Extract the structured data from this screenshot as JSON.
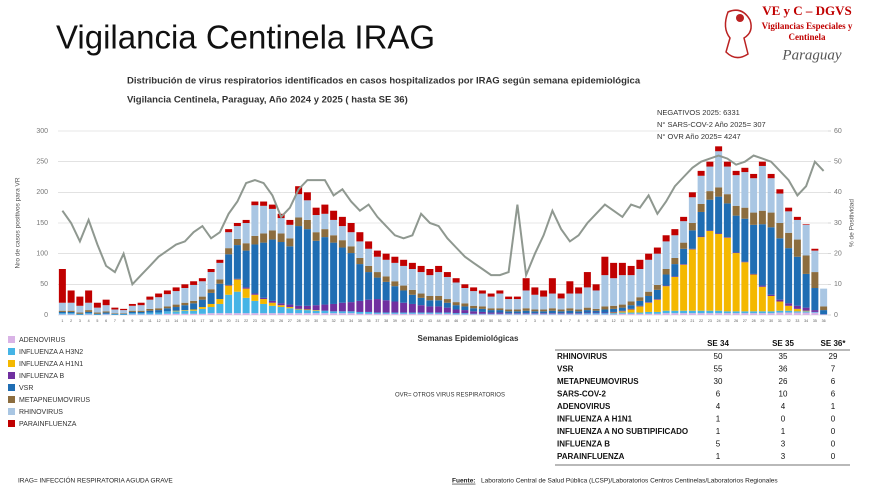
{
  "header": {
    "title": "Vigilancia Centinela IRAG",
    "logo_title": "VE y C – DGVS",
    "logo_line1": "Vigilancias Especiales y",
    "logo_line2": "Centinela",
    "logo_country": "Paraguay"
  },
  "chart_data": {
    "type": "bar",
    "stacked": true,
    "title": "Distribución de virus respiratorios identificados en casos hospitalizados por IRAG según semana epidemiológica",
    "subtitle": "Vigilancia Centinela, Paraguay, Año 2024 y 2025 ( hasta SE 36)",
    "x_label": "Semanas Epidemiológicas",
    "y_label": "Nro de casos positivos para VR",
    "y2_label": "% de Positividad",
    "annotations": [
      "NEGATIVOS 2025: 6331",
      "N° SARS-COV-2 Año 2025= 307",
      "N° OVR Año 2025= 4247"
    ],
    "note": "OVR= OTROS VIRUS RESPIRATORIOS",
    "categories": [
      "1",
      "2",
      "3",
      "4",
      "5",
      "6",
      "7",
      "8",
      "9",
      "10",
      "11",
      "12",
      "13",
      "14",
      "15",
      "16",
      "17",
      "18",
      "19",
      "20",
      "21",
      "22",
      "23",
      "24",
      "25",
      "26",
      "27",
      "28",
      "29",
      "30",
      "31",
      "32",
      "33",
      "34",
      "35",
      "36",
      "37",
      "38",
      "39",
      "40",
      "41",
      "42",
      "43",
      "44",
      "45",
      "46",
      "47",
      "48",
      "49",
      "50",
      "51",
      "52",
      "1",
      "2",
      "3",
      "4",
      "5",
      "6",
      "7",
      "8",
      "9",
      "10",
      "11",
      "12",
      "13",
      "14",
      "15",
      "16",
      "17",
      "18",
      "19",
      "20",
      "21",
      "22",
      "23",
      "24",
      "25",
      "26",
      "27",
      "28",
      "29",
      "30",
      "31",
      "32",
      "33",
      "34",
      "35",
      "36"
    ],
    "ylim": [
      0,
      300
    ],
    "yticks": [
      0,
      50,
      100,
      150,
      200,
      250,
      300
    ],
    "y2lim": [
      0,
      60
    ],
    "y2ticks": [
      0,
      10,
      20,
      30,
      40,
      50,
      60
    ],
    "grid": true,
    "series": [
      {
        "name": "ADENOVIRUS",
        "color": "#d9b3e6",
        "values": [
          1,
          1,
          0,
          1,
          0,
          1,
          0,
          0,
          1,
          1,
          1,
          1,
          2,
          2,
          2,
          2,
          2,
          3,
          3,
          3,
          3,
          3,
          3,
          3,
          3,
          3,
          3,
          3,
          3,
          3,
          3,
          3,
          3,
          3,
          2,
          2,
          2,
          2,
          2,
          2,
          2,
          2,
          2,
          2,
          2,
          1,
          1,
          1,
          1,
          1,
          1,
          1,
          1,
          1,
          1,
          1,
          1,
          1,
          1,
          1,
          1,
          1,
          1,
          1,
          2,
          2,
          2,
          2,
          2,
          3,
          3,
          3,
          3,
          3,
          3,
          3,
          3,
          3,
          3,
          3,
          3,
          3,
          4,
          4,
          4,
          4,
          4,
          1
        ]
      },
      {
        "name": "INFLUENZA A H3N2",
        "color": "#45b4e6",
        "values": [
          2,
          2,
          1,
          2,
          1,
          1,
          1,
          1,
          2,
          2,
          3,
          3,
          4,
          4,
          5,
          5,
          8,
          10,
          15,
          30,
          35,
          25,
          20,
          15,
          12,
          10,
          8,
          6,
          5,
          4,
          4,
          3,
          3,
          3,
          3,
          3,
          2,
          2,
          2,
          2,
          2,
          2,
          2,
          2,
          2,
          2,
          2,
          1,
          1,
          1,
          1,
          1,
          1,
          1,
          1,
          1,
          1,
          1,
          1,
          1,
          2,
          2,
          2,
          2,
          2,
          2,
          2,
          3,
          3,
          4,
          4,
          4,
          4,
          4,
          4,
          4,
          3,
          3,
          3,
          3,
          3,
          3,
          3,
          3,
          2,
          2,
          1,
          0
        ]
      },
      {
        "name": "INFLUENZA A H1N1",
        "color": "#f4b800",
        "values": [
          0,
          0,
          0,
          0,
          0,
          0,
          0,
          0,
          0,
          0,
          0,
          0,
          0,
          1,
          1,
          2,
          3,
          5,
          8,
          15,
          20,
          15,
          10,
          8,
          5,
          3,
          2,
          1,
          1,
          1,
          0,
          0,
          0,
          0,
          0,
          0,
          0,
          0,
          0,
          0,
          0,
          0,
          0,
          0,
          0,
          0,
          0,
          0,
          0,
          0,
          0,
          0,
          0,
          0,
          0,
          0,
          0,
          0,
          0,
          0,
          0,
          0,
          0,
          1,
          2,
          5,
          10,
          15,
          20,
          40,
          55,
          75,
          100,
          120,
          130,
          125,
          120,
          95,
          80,
          60,
          40,
          25,
          15,
          8,
          4,
          1,
          0,
          0
        ]
      },
      {
        "name": "INFLUENZA B",
        "color": "#7030a0",
        "values": [
          0,
          0,
          0,
          0,
          0,
          0,
          0,
          0,
          0,
          0,
          0,
          0,
          0,
          0,
          0,
          0,
          0,
          0,
          0,
          1,
          1,
          2,
          2,
          2,
          3,
          3,
          4,
          5,
          6,
          8,
          10,
          12,
          14,
          15,
          18,
          20,
          22,
          20,
          18,
          16,
          14,
          12,
          10,
          10,
          8,
          6,
          5,
          4,
          3,
          2,
          2,
          1,
          1,
          1,
          1,
          1,
          1,
          1,
          1,
          1,
          1,
          1,
          1,
          1,
          1,
          1,
          1,
          1,
          1,
          1,
          1,
          1,
          1,
          1,
          1,
          1,
          1,
          1,
          1,
          1,
          2,
          2,
          3,
          4,
          5,
          5,
          3,
          0
        ]
      },
      {
        "name": "VSR",
        "color": "#1f6db3",
        "values": [
          2,
          2,
          1,
          2,
          1,
          2,
          1,
          1,
          2,
          2,
          3,
          4,
          5,
          6,
          8,
          10,
          12,
          18,
          25,
          50,
          55,
          60,
          80,
          90,
          100,
          100,
          95,
          130,
          125,
          105,
          110,
          100,
          90,
          80,
          60,
          45,
          35,
          30,
          25,
          20,
          15,
          12,
          10,
          10,
          8,
          7,
          6,
          5,
          5,
          4,
          4,
          3,
          3,
          4,
          3,
          3,
          4,
          3,
          4,
          3,
          4,
          3,
          5,
          5,
          5,
          6,
          8,
          10,
          15,
          18,
          20,
          25,
          30,
          40,
          50,
          60,
          55,
          60,
          70,
          80,
          100,
          110,
          100,
          90,
          80,
          55,
          36,
          7
        ]
      },
      {
        "name": "METAPNEUMOVIRUS",
        "color": "#8c6d3f",
        "values": [
          2,
          2,
          2,
          3,
          2,
          2,
          1,
          1,
          2,
          2,
          3,
          3,
          3,
          4,
          4,
          4,
          5,
          6,
          7,
          10,
          10,
          12,
          14,
          15,
          15,
          14,
          13,
          14,
          15,
          14,
          13,
          12,
          12,
          11,
          10,
          10,
          9,
          9,
          8,
          8,
          8,
          7,
          7,
          7,
          6,
          5,
          5,
          4,
          4,
          3,
          3,
          3,
          3,
          4,
          3,
          3,
          4,
          3,
          4,
          3,
          4,
          3,
          5,
          5,
          5,
          6,
          6,
          7,
          8,
          9,
          10,
          10,
          12,
          13,
          14,
          15,
          15,
          16,
          18,
          20,
          22,
          24,
          25,
          25,
          28,
          30,
          26,
          6
        ]
      },
      {
        "name": "RHINOVIRUS",
        "color": "#a9c6e3",
        "values": [
          13,
          13,
          11,
          12,
          8,
          10,
          6,
          5,
          8,
          9,
          15,
          18,
          20,
          22,
          24,
          26,
          25,
          28,
          27,
          26,
          21,
          33,
          50,
          45,
          35,
          25,
          22,
          38,
          32,
          28,
          25,
          25,
          23,
          23,
          27,
          28,
          25,
          27,
          30,
          32,
          34,
          35,
          34,
          39,
          36,
          32,
          25,
          24,
          21,
          19,
          24,
          17,
          17,
          29,
          24,
          21,
          24,
          18,
          24,
          26,
          33,
          30,
          51,
          45,
          48,
          43,
          46,
          52,
          51,
          45,
          37,
          35,
          42,
          46,
          40,
          59,
          45,
          50,
          58,
          56,
          73,
          56,
          48,
          35,
          32,
          50,
          35,
          29
        ]
      },
      {
        "name": "PARAINFLUENZA",
        "color": "#c00000",
        "values": [
          55,
          20,
          15,
          20,
          8,
          9,
          3,
          2,
          3,
          4,
          5,
          6,
          6,
          6,
          6,
          6,
          5,
          5,
          5,
          5,
          5,
          5,
          6,
          7,
          7,
          7,
          8,
          13,
          13,
          12,
          15,
          15,
          15,
          15,
          15,
          12,
          10,
          10,
          10,
          10,
          10,
          10,
          10,
          10,
          8,
          7,
          6,
          6,
          5,
          5,
          5,
          4,
          4,
          20,
          12,
          10,
          25,
          8,
          20,
          10,
          25,
          10,
          30,
          25,
          20,
          15,
          15,
          10,
          10,
          10,
          10,
          7,
          8,
          8,
          8,
          8,
          8,
          7,
          7,
          7,
          7,
          7,
          7,
          6,
          5,
          1,
          3,
          0
        ]
      }
    ],
    "positivity": {
      "axis": "y2",
      "color": "#8f9890",
      "values": [
        34,
        30,
        24,
        31,
        23,
        16,
        14,
        20,
        10,
        13,
        16,
        19,
        21,
        23,
        24,
        27,
        29,
        25,
        27,
        33,
        37,
        43,
        44,
        43,
        39,
        32,
        35,
        41,
        44,
        44,
        44,
        39,
        41,
        37,
        34,
        36,
        32,
        29,
        26,
        25,
        26,
        33,
        30,
        29,
        25,
        22,
        19,
        17,
        15,
        13,
        13,
        14,
        36,
        13,
        20,
        26,
        34,
        28,
        24,
        26,
        30,
        33,
        36,
        34,
        32,
        36,
        35,
        39,
        33,
        37,
        42,
        45,
        48,
        50,
        51,
        52,
        51,
        49,
        50,
        52,
        51,
        50,
        47,
        44,
        39,
        42,
        50,
        47
      ]
    }
  },
  "table": {
    "columns": [
      "SE 34",
      "SE 35",
      "SE 36*"
    ],
    "rows": [
      [
        "RHINOVIRUS",
        "50",
        "35",
        "29"
      ],
      [
        "VSR",
        "55",
        "36",
        "7"
      ],
      [
        "METAPNEUMOVIRUS",
        "30",
        "26",
        "6"
      ],
      [
        "SARS-COV-2",
        "6",
        "10",
        "6"
      ],
      [
        "ADENOVIRUS",
        "4",
        "4",
        "1"
      ],
      [
        "INFLUENZA A H1N1",
        "1",
        "0",
        "0"
      ],
      [
        "INFLUENZA A NO SUBTIPIFICADO",
        "1",
        "1",
        "0"
      ],
      [
        "INFLUENZA B",
        "5",
        "3",
        "0"
      ],
      [
        "PARAINFLUENZA",
        "1",
        "3",
        "0"
      ]
    ]
  },
  "footer": {
    "definition": "IRAG= INFECCIÓN RESPIRATORIA AGUDA GRAVE",
    "source_label": "Fuente:",
    "source": "Laboratorio Central de Salud Pública (LCSP)/Laboratorios Centros Centinelas/Laboratorios Regionales"
  }
}
